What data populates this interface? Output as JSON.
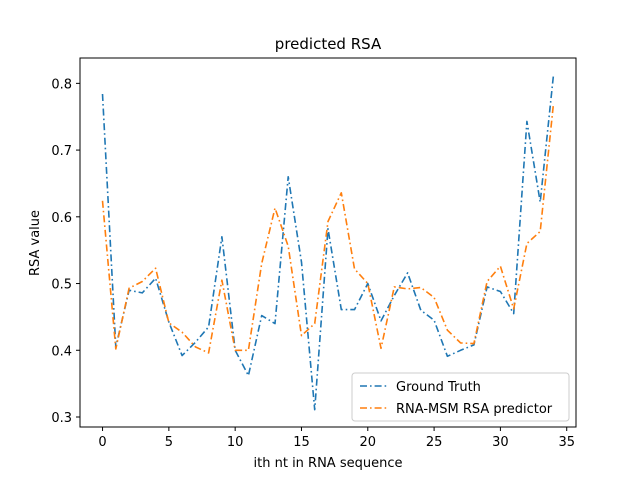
{
  "chart_data": {
    "type": "line",
    "title": "predicted RSA",
    "xlabel": "ith nt in RNA sequence",
    "ylabel": "RSA value",
    "xlim": [
      -1.7,
      35.7
    ],
    "ylim": [
      0.285,
      0.838
    ],
    "xticks": [
      0,
      5,
      10,
      15,
      20,
      25,
      30,
      35
    ],
    "yticks": [
      0.3,
      0.4,
      0.5,
      0.6,
      0.7,
      0.8
    ],
    "ytick_labels": [
      "0.3",
      "0.4",
      "0.5",
      "0.6",
      "0.7",
      "0.8"
    ],
    "grid": false,
    "legend_position": "lower-right",
    "x": [
      0,
      1,
      2,
      3,
      4,
      5,
      6,
      7,
      8,
      9,
      10,
      11,
      12,
      13,
      14,
      15,
      16,
      17,
      18,
      19,
      20,
      21,
      22,
      23,
      24,
      25,
      26,
      27,
      28,
      29,
      30,
      31,
      32,
      33,
      34
    ],
    "series": [
      {
        "name": "Ground Truth",
        "color": "#1f77b4",
        "values": [
          0.784,
          0.405,
          0.49,
          0.486,
          0.508,
          0.442,
          0.392,
          0.412,
          0.435,
          0.57,
          0.4,
          0.362,
          0.452,
          0.44,
          0.66,
          0.532,
          0.311,
          0.582,
          0.461,
          0.461,
          0.5,
          0.444,
          0.482,
          0.516,
          0.46,
          0.445,
          0.391,
          0.4,
          0.408,
          0.495,
          0.488,
          0.455,
          0.743,
          0.622,
          0.813
        ]
      },
      {
        "name": "RNA-MSM RSA predictor",
        "color": "#ff7f0e",
        "values": [
          0.624,
          0.402,
          0.493,
          0.503,
          0.523,
          0.441,
          0.427,
          0.405,
          0.396,
          0.505,
          0.4,
          0.4,
          0.53,
          0.613,
          0.556,
          0.422,
          0.44,
          0.593,
          0.636,
          0.522,
          0.5,
          0.403,
          0.495,
          0.492,
          0.494,
          0.479,
          0.43,
          0.411,
          0.41,
          0.503,
          0.526,
          0.462,
          0.56,
          0.578,
          0.77
        ]
      }
    ]
  }
}
